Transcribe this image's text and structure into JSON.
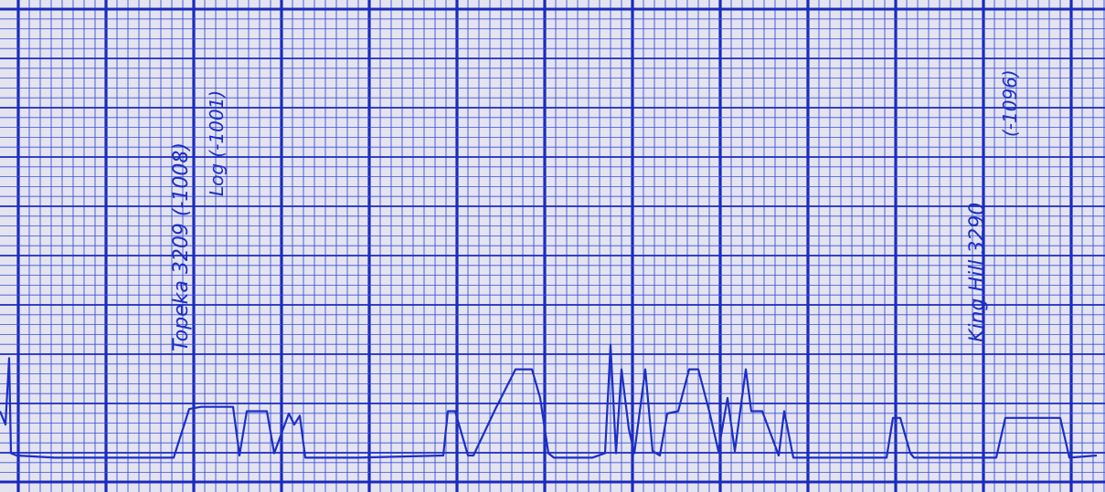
{
  "chart_data": {
    "type": "line",
    "title": "",
    "xlabel": "",
    "ylabel": "",
    "grid": true,
    "colors": {
      "paper": "#e4e3f0",
      "grid_minor": "#3a4fd8",
      "grid_major": "#1a2bbd",
      "trace": "#1c2fc4",
      "ink": "#1c2fc4"
    },
    "trace": {
      "x": [
        0,
        6,
        10,
        12,
        18,
        60,
        115,
        190,
        207,
        220,
        255,
        262,
        270,
        292,
        300,
        316,
        322,
        328,
        334,
        392,
        485,
        490,
        498,
        512,
        518,
        542,
        564,
        582,
        591,
        600,
        606,
        648,
        662,
        668,
        674,
        680,
        688,
        694,
        706,
        714,
        722,
        730,
        742,
        754,
        764,
        776,
        786,
        796,
        804,
        816,
        822,
        834,
        852,
        858,
        868,
        888,
        970,
        977,
        985,
        996,
        1000,
        1090,
        1100,
        1160,
        1170,
        1200
      ],
      "y": [
        1.1,
        0.8,
        2.3,
        0.15,
        0.1,
        0.05,
        0.05,
        0.05,
        1.15,
        1.2,
        1.2,
        0.1,
        1.1,
        1.1,
        0.15,
        1.05,
        0.8,
        1.0,
        0.05,
        0.05,
        0.1,
        1.1,
        1.1,
        0.1,
        0.1,
        1.15,
        2.05,
        2.05,
        1.4,
        0.15,
        0.05,
        0.05,
        0.15,
        2.6,
        0.15,
        2.05,
        0.7,
        0.15,
        2.05,
        0.2,
        0.1,
        1.05,
        1.1,
        2.05,
        2.05,
        1.1,
        0.2,
        1.4,
        0.2,
        2.05,
        1.1,
        1.1,
        0.1,
        1.1,
        0.05,
        0.05,
        0.05,
        0.95,
        0.95,
        0.15,
        0.05,
        0.05,
        0.95,
        0.95,
        0.05,
        0.1
      ]
    },
    "xlim": [
      0,
      1209
    ],
    "ylim": [
      -0.5,
      10.2
    ]
  },
  "annotations": [
    {
      "text": "Topeka 3209 (-1008)",
      "color": "#1c2fc4"
    },
    {
      "text": "Log (-1001)",
      "color": "#1c2fc4"
    },
    {
      "text": "King Hill 3290",
      "color": "#1c2fc4"
    },
    {
      "text": "(-1096)",
      "color": "#1c2fc4"
    }
  ]
}
